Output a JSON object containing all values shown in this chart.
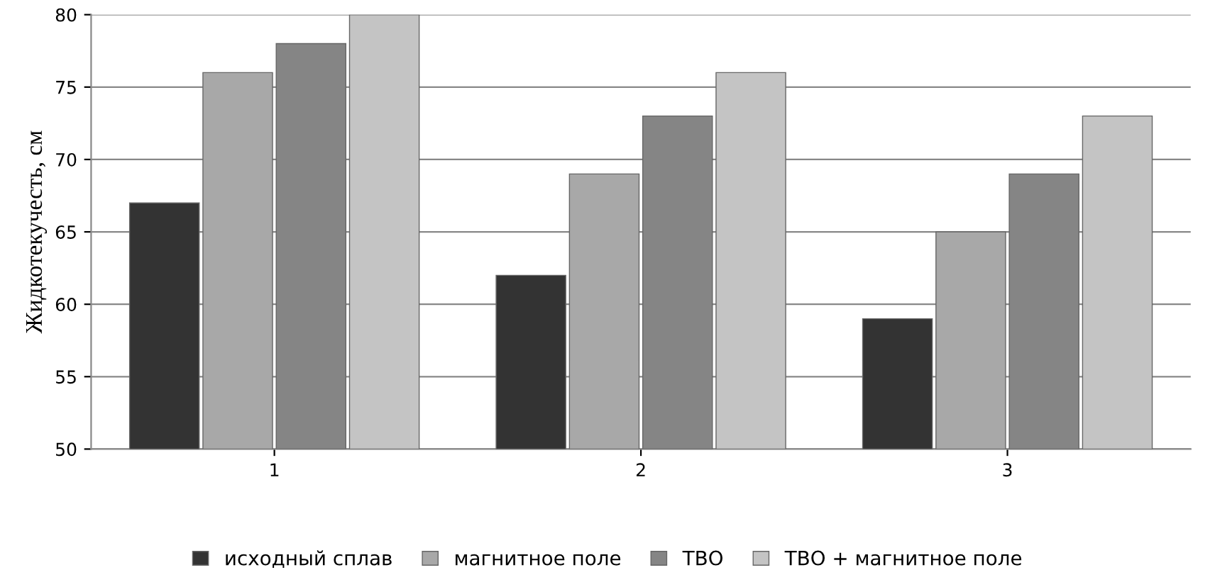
{
  "chart_data": {
    "type": "bar",
    "ylabel": "Жидкотекучесть, см",
    "categories": [
      "1",
      "2",
      "3"
    ],
    "series": [
      {
        "name": "исходный сплав",
        "color": "#333333",
        "values": [
          67,
          62,
          59
        ]
      },
      {
        "name": "магнитное поле",
        "color": "#a8a8a8",
        "values": [
          76,
          69,
          65
        ]
      },
      {
        "name": "ТВО",
        "color": "#858585",
        "values": [
          78,
          73,
          69
        ]
      },
      {
        "name": "ТВО + магнитное поле",
        "color": "#c4c4c4",
        "values": [
          80,
          76,
          73
        ]
      }
    ],
    "ylim": [
      50,
      80
    ],
    "yticks": [
      50,
      55,
      60,
      65,
      70,
      75,
      80
    ],
    "grid": "y",
    "legend": "bottom"
  }
}
